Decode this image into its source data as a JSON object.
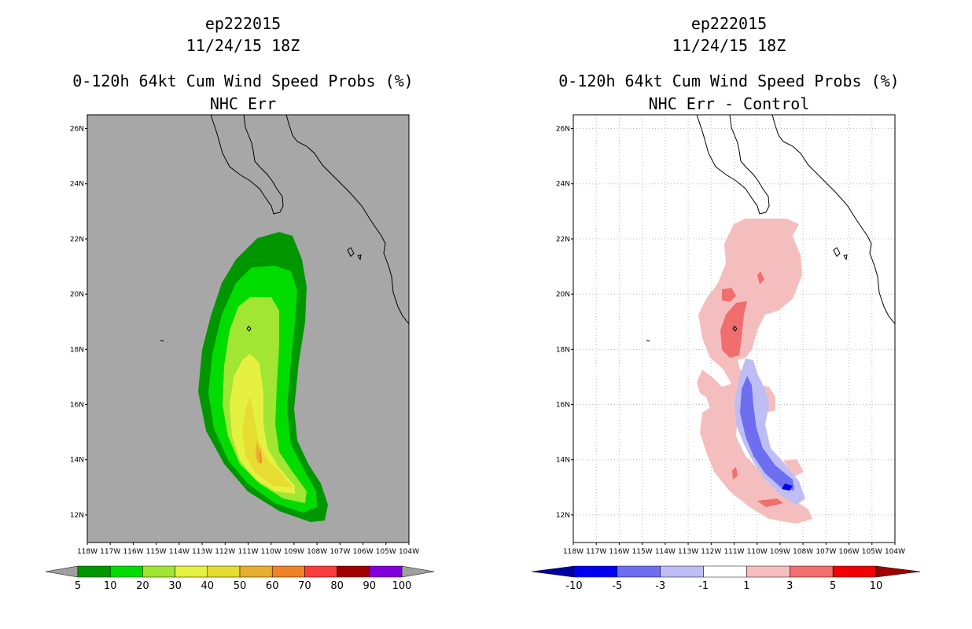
{
  "chart_data": [
    {
      "type": "map-contour",
      "storm_id": "ep222015",
      "datetime": "11/24/15 18Z",
      "title": "0-120h 64kt Cum Wind Speed Probs (%)",
      "subtitle": "NHC Err",
      "lon_range": [
        -118,
        -104
      ],
      "lat_range": [
        11,
        26.5
      ],
      "background_color": "#a7a7a7",
      "grid": false,
      "x_tick_labels": [
        "118W",
        "117W",
        "116W",
        "115W",
        "114W",
        "113W",
        "112W",
        "111W",
        "110W",
        "109W",
        "108W",
        "107W",
        "106W",
        "105W",
        "104W"
      ],
      "y_tick_labels": [
        "12N",
        "14N",
        "16N",
        "18N",
        "20N",
        "22N",
        "24N",
        "26N"
      ],
      "colorbar": {
        "labels": [
          "5",
          "10",
          "20",
          "30",
          "40",
          "50",
          "60",
          "70",
          "80",
          "90",
          "100"
        ],
        "colors": [
          "#009600",
          "#00dc00",
          "#a0e632",
          "#e6f040",
          "#e6dc32",
          "#e6af2d",
          "#f08228",
          "#fa3c3c",
          "#a00000",
          "#8200dc"
        ]
      },
      "contour_levels": [
        5,
        10,
        20,
        30,
        40,
        50,
        60
      ]
    },
    {
      "type": "map-contour",
      "storm_id": "ep222015",
      "datetime": "11/24/15 18Z",
      "title": "0-120h 64kt Cum Wind Speed Probs (%)",
      "subtitle": "NHC Err - Control",
      "lon_range": [
        -118,
        -104
      ],
      "lat_range": [
        11,
        26.5
      ],
      "background_color": "#ffffff",
      "grid": true,
      "x_tick_labels": [
        "118W",
        "117W",
        "116W",
        "115W",
        "114W",
        "113W",
        "112W",
        "111W",
        "110W",
        "109W",
        "108W",
        "107W",
        "106W",
        "105W",
        "104W"
      ],
      "y_tick_labels": [
        "12N",
        "14N",
        "16N",
        "18N",
        "20N",
        "22N",
        "24N",
        "26N"
      ],
      "colorbar": {
        "labels": [
          "-10",
          "-5",
          "-3",
          "-1",
          "1",
          "3",
          "5",
          "10"
        ],
        "colors": [
          "#0000a0",
          "#0000f0",
          "#6e6ef0",
          "#bebef5",
          "#ffffff",
          "#f5bebe",
          "#f06e6e",
          "#f00000",
          "#a00000"
        ]
      },
      "contour_levels": [
        -5,
        -3,
        -1,
        1,
        3
      ]
    }
  ]
}
